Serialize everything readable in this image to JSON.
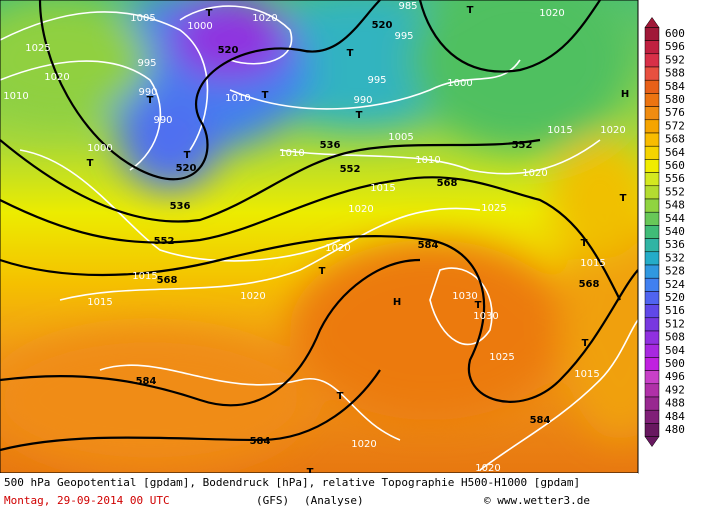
{
  "footer": {
    "description": "500 hPa Geopotential [gpdam], Bodendruck [hPa], relative Topographie H500-H1000 [gpdam]",
    "date": "Montag, 29-09-2014  00 UTC",
    "model": "(GFS)",
    "run": "(Analyse)",
    "credit": "© www.wetter3.de"
  },
  "colorbar": {
    "labels": [
      600,
      596,
      592,
      588,
      584,
      580,
      576,
      572,
      568,
      564,
      560,
      556,
      552,
      548,
      544,
      540,
      536,
      532,
      528,
      524,
      520,
      516,
      512,
      508,
      504,
      500,
      496,
      492,
      488,
      484,
      480
    ],
    "colors": [
      "#a01838",
      "#c02040",
      "#d83048",
      "#e85040",
      "#e86018",
      "#ec7410",
      "#f08c10",
      "#f5a400",
      "#f8bc00",
      "#f5d400",
      "#f0ec00",
      "#d4e820",
      "#b4dc30",
      "#90d440",
      "#68c858",
      "#40bc78",
      "#30b4a4",
      "#24acc8",
      "#3098e0",
      "#4080f0",
      "#5064f0",
      "#6048e8",
      "#7838e0",
      "#9030e0",
      "#a828e0",
      "#c020e0",
      "#c840c8",
      "#b030a8",
      "#982890",
      "#802078",
      "#681860"
    ]
  },
  "map_labels": [
    "1005",
    "1000",
    "1020",
    "520",
    "520",
    "995",
    "985",
    "1020",
    "1025",
    "1020",
    "995",
    "990",
    "1010",
    "1000",
    "990",
    "1010",
    "995",
    "1000",
    "990",
    "536",
    "1005",
    "1010",
    "552",
    "1015",
    "1020",
    "520",
    "1010",
    "1020",
    "552",
    "1015",
    "568",
    "536",
    "1020",
    "1025",
    "552",
    "1020",
    "584",
    "568",
    "1015",
    "1015",
    "1020",
    "568",
    "1015",
    "1030",
    "1030",
    "1025",
    "1015",
    "584",
    "584",
    "584",
    "1020",
    "1020",
    "T",
    "T",
    "T",
    "T",
    "T",
    "T",
    "T",
    "T",
    "T",
    "T",
    "T",
    "T",
    "T",
    "T",
    "T",
    "H",
    "H"
  ]
}
